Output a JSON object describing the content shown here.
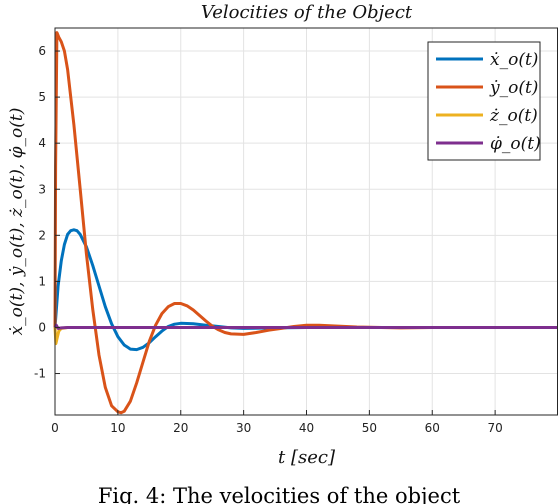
{
  "caption": "Fig. 4: The velocities of the object",
  "chart_data": {
    "type": "line",
    "title": "Velocities of the Object",
    "xlabel": "t [sec]",
    "ylabel": "ẋ_o(t), ẏ_o(t), ż_o(t), φ̇_o(t)",
    "xlim": [
      0,
      80
    ],
    "ylim": [
      -1.9,
      6.5
    ],
    "xticks": [
      0,
      10,
      20,
      30,
      40,
      50,
      60,
      70
    ],
    "yticks": [
      -1,
      0,
      1,
      2,
      3,
      4,
      5,
      6
    ],
    "grid": true,
    "legend_position": "top-right",
    "series": [
      {
        "name": "ẋ_o(t)",
        "color": "#0072BD",
        "x": [
          0,
          0.5,
          1,
          1.5,
          2,
          2.5,
          3,
          3.5,
          4,
          5,
          6,
          7,
          8,
          9,
          10,
          11,
          12,
          13,
          14,
          15,
          16,
          17,
          18,
          19,
          20,
          22,
          24,
          26,
          28,
          30,
          35,
          40,
          50,
          60,
          70,
          80
        ],
        "values": [
          0,
          0.9,
          1.45,
          1.8,
          2.02,
          2.1,
          2.12,
          2.1,
          2.02,
          1.75,
          1.35,
          0.9,
          0.45,
          0.08,
          -0.2,
          -0.38,
          -0.47,
          -0.48,
          -0.43,
          -0.33,
          -0.2,
          -0.08,
          0.02,
          0.07,
          0.09,
          0.08,
          0.05,
          0.02,
          -0.01,
          -0.02,
          -0.01,
          0.0,
          0.0,
          0.0,
          0.0,
          0.0
        ]
      },
      {
        "name": "ẏ_o(t)",
        "color": "#D95319",
        "x": [
          0,
          0.1,
          0.3,
          0.6,
          1,
          1.5,
          2,
          3,
          4,
          5,
          6,
          7,
          8,
          9,
          10,
          10.5,
          11,
          12,
          13,
          14,
          15,
          16,
          17,
          18,
          19,
          20,
          21,
          22,
          23,
          24,
          25,
          26,
          27,
          28,
          30,
          32,
          34,
          36,
          38,
          40,
          42,
          45,
          48,
          55,
          60,
          65,
          70,
          80
        ],
        "values": [
          0,
          3.5,
          6.4,
          6.3,
          6.2,
          6.0,
          5.6,
          4.4,
          3.0,
          1.6,
          0.4,
          -0.6,
          -1.3,
          -1.7,
          -1.83,
          -1.85,
          -1.82,
          -1.6,
          -1.2,
          -0.75,
          -0.3,
          0.05,
          0.3,
          0.45,
          0.52,
          0.52,
          0.47,
          0.38,
          0.26,
          0.14,
          0.03,
          -0.05,
          -0.11,
          -0.14,
          -0.15,
          -0.11,
          -0.06,
          -0.02,
          0.02,
          0.05,
          0.05,
          0.03,
          0.01,
          -0.01,
          0.0,
          0.0,
          0.0,
          0.0
        ]
      },
      {
        "name": "ż_o(t)",
        "color": "#EDB120",
        "x": [
          0,
          0.15,
          0.3,
          0.6,
          1,
          2,
          5,
          10,
          20,
          40,
          60,
          80
        ],
        "values": [
          0,
          -0.35,
          -0.25,
          -0.08,
          -0.02,
          0.0,
          0.0,
          0.0,
          0.0,
          0.0,
          0.0,
          0.0
        ]
      },
      {
        "name": "φ̇_o(t)",
        "color": "#7E2F8E",
        "x": [
          0,
          0.2,
          0.5,
          1,
          2,
          5,
          10,
          20,
          40,
          60,
          80
        ],
        "values": [
          0,
          0.05,
          -0.02,
          -0.01,
          0.0,
          0.0,
          0.0,
          0.0,
          0.0,
          0.0,
          0.0
        ]
      }
    ]
  }
}
